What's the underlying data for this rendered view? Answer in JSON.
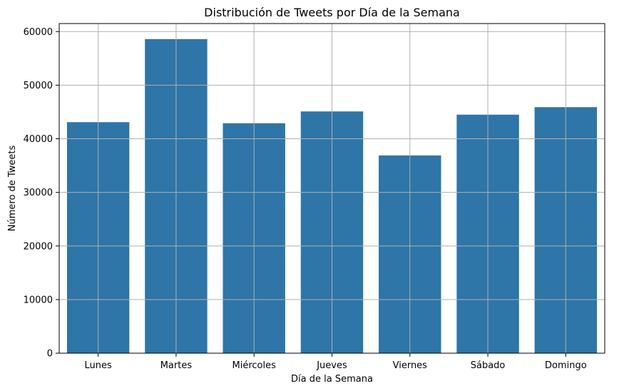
{
  "chart_data": {
    "type": "bar",
    "title": "Distribución de Tweets por Día de la Semana",
    "xlabel": "Día de la Semana",
    "ylabel": "Número de Tweets",
    "categories": [
      "Lunes",
      "Martes",
      "Miércoles",
      "Jueves",
      "Viernes",
      "Sábado",
      "Domingo"
    ],
    "values": [
      43100,
      58600,
      42900,
      45100,
      36900,
      44500,
      45900
    ],
    "ylim": [
      0,
      61500
    ],
    "yticks": [
      0,
      10000,
      20000,
      30000,
      40000,
      50000,
      60000
    ],
    "ytick_labels": [
      "0",
      "10000",
      "20000",
      "30000",
      "40000",
      "50000",
      "60000"
    ],
    "grid": true,
    "bar_color": "#2e75a8",
    "grid_color": "#b0b0b0"
  }
}
